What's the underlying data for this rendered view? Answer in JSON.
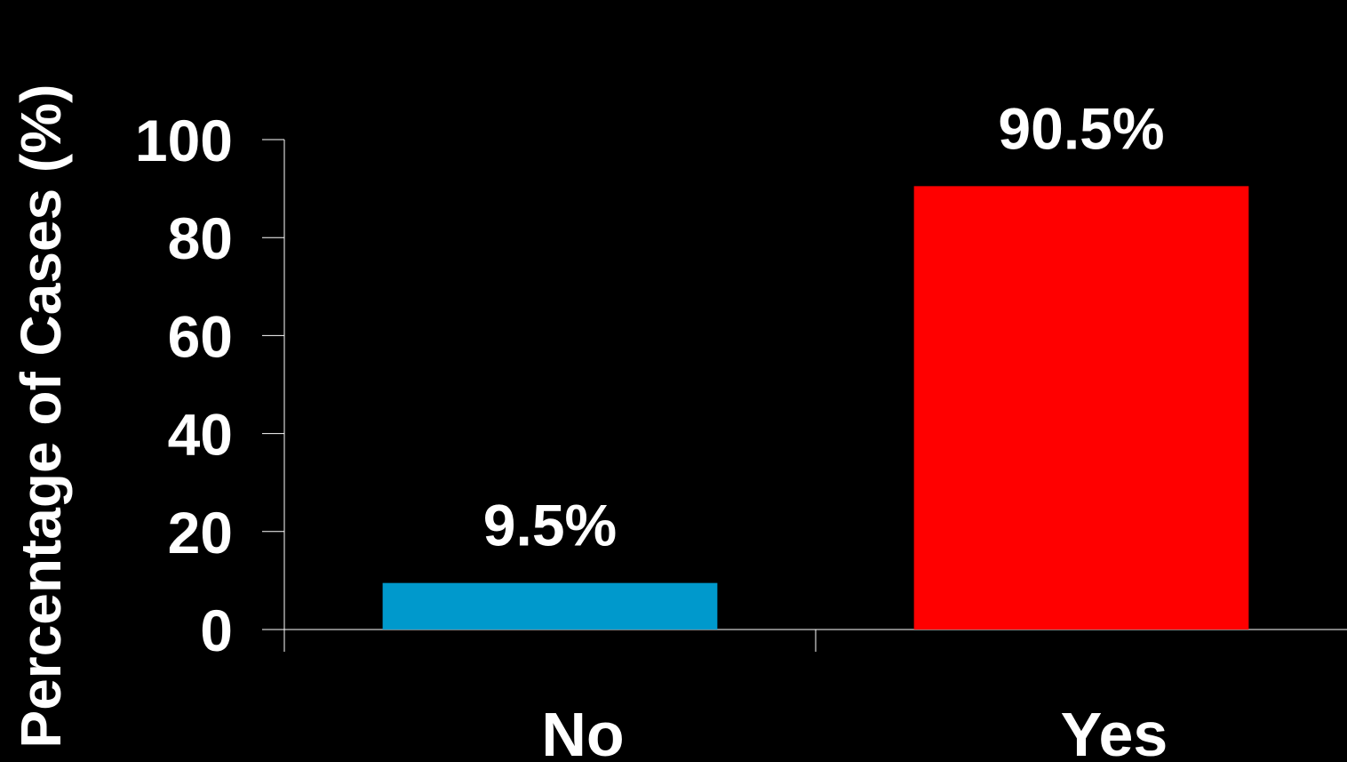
{
  "chart_data": {
    "type": "bar",
    "title": "",
    "xlabel": "",
    "ylabel": "Percentage of Cases (%)",
    "categories": [
      "No",
      "Yes"
    ],
    "values": [
      9.5,
      90.5
    ],
    "data_labels": [
      "9.5%",
      "90.5%"
    ],
    "ylim": [
      0,
      100
    ],
    "yticks": [
      0,
      20,
      40,
      60,
      80,
      100
    ],
    "ytick_labels": [
      "0",
      "20",
      "40",
      "60",
      "80",
      "100"
    ],
    "grid": false,
    "legend": "none",
    "bar_colors": [
      "#0099cc",
      "#ff0000"
    ],
    "background": "#000000",
    "axis_color": "#ffffff"
  }
}
